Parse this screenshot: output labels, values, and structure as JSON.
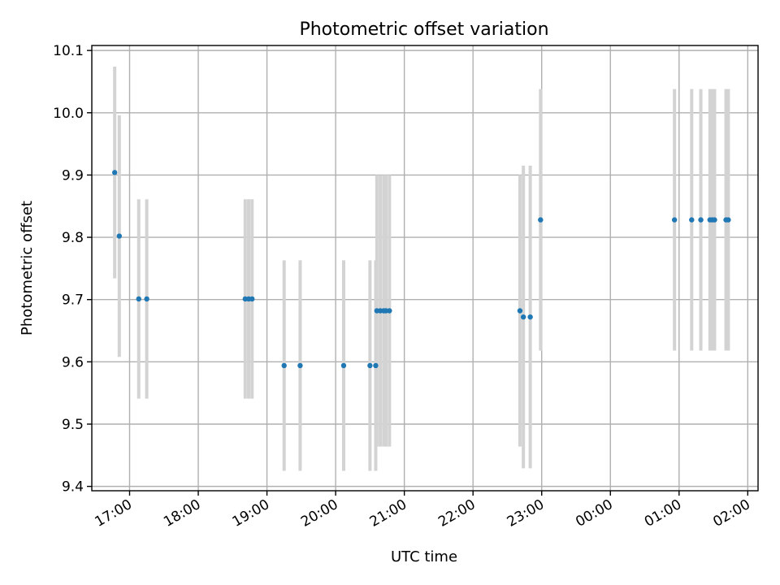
{
  "chart_data": {
    "type": "scatter",
    "title": "Photometric offset variation",
    "xlabel": "UTC time",
    "ylabel": "Photometric offset",
    "grid": true,
    "legend": "none",
    "x_range_hours": [
      16.45,
      26.15
    ],
    "ylim": [
      9.393,
      10.108
    ],
    "x_ticks": [
      {
        "hour": 17,
        "label": "17:00"
      },
      {
        "hour": 18,
        "label": "18:00"
      },
      {
        "hour": 19,
        "label": "19:00"
      },
      {
        "hour": 20,
        "label": "20:00"
      },
      {
        "hour": 21,
        "label": "21:00"
      },
      {
        "hour": 22,
        "label": "22:00"
      },
      {
        "hour": 23,
        "label": "23:00"
      },
      {
        "hour": 24,
        "label": "00:00"
      },
      {
        "hour": 25,
        "label": "01:00"
      },
      {
        "hour": 26,
        "label": "02:00"
      }
    ],
    "y_ticks": [
      {
        "value": 9.4,
        "label": "9.4"
      },
      {
        "value": 9.5,
        "label": "9.5"
      },
      {
        "value": 9.6,
        "label": "9.6"
      },
      {
        "value": 9.7,
        "label": "9.7"
      },
      {
        "value": 9.8,
        "label": "9.8"
      },
      {
        "value": 9.9,
        "label": "9.9"
      },
      {
        "value": 10.0,
        "label": "10.0"
      },
      {
        "value": 10.1,
        "label": "10.1"
      }
    ],
    "colors": {
      "points": "#1f77b4",
      "errorbars": "#d3d3d3",
      "grid": "#b0b0b0"
    },
    "points": [
      {
        "time": "16:47",
        "y": 9.904,
        "err": 0.17
      },
      {
        "time": "16:51",
        "y": 9.802,
        "err": 0.194
      },
      {
        "time": "17:08",
        "y": 9.701,
        "err": 0.16
      },
      {
        "time": "17:15",
        "y": 9.701,
        "err": 0.16
      },
      {
        "time": "18:41",
        "y": 9.701,
        "err": 0.16
      },
      {
        "time": "18:44",
        "y": 9.701,
        "err": 0.16
      },
      {
        "time": "18:47",
        "y": 9.701,
        "err": 0.16
      },
      {
        "time": "19:15",
        "y": 9.594,
        "err": 0.169
      },
      {
        "time": "19:29",
        "y": 9.594,
        "err": 0.169
      },
      {
        "time": "20:07",
        "y": 9.594,
        "err": 0.169
      },
      {
        "time": "20:30",
        "y": 9.594,
        "err": 0.169
      },
      {
        "time": "20:35",
        "y": 9.594,
        "err": 0.169
      },
      {
        "time": "20:36",
        "y": 9.682,
        "err": 0.218
      },
      {
        "time": "20:39",
        "y": 9.682,
        "err": 0.218
      },
      {
        "time": "20:42",
        "y": 9.682,
        "err": 0.218
      },
      {
        "time": "20:44",
        "y": 9.682,
        "err": 0.218
      },
      {
        "time": "20:47",
        "y": 9.682,
        "err": 0.218
      },
      {
        "time": "22:41",
        "y": 9.682,
        "err": 0.218
      },
      {
        "time": "22:44",
        "y": 9.672,
        "err": 0.243
      },
      {
        "time": "22:50",
        "y": 9.672,
        "err": 0.243
      },
      {
        "time": "22:59",
        "y": 9.828,
        "err": 0.21
      },
      {
        "time": "00:56",
        "y": 9.828,
        "err": 0.21
      },
      {
        "time": "01:11",
        "y": 9.828,
        "err": 0.21
      },
      {
        "time": "01:19",
        "y": 9.828,
        "err": 0.21
      },
      {
        "time": "01:27",
        "y": 9.828,
        "err": 0.21
      },
      {
        "time": "01:29",
        "y": 9.828,
        "err": 0.21
      },
      {
        "time": "01:31",
        "y": 9.828,
        "err": 0.21
      },
      {
        "time": "01:41",
        "y": 9.828,
        "err": 0.21
      },
      {
        "time": "01:43",
        "y": 9.828,
        "err": 0.21
      }
    ]
  }
}
